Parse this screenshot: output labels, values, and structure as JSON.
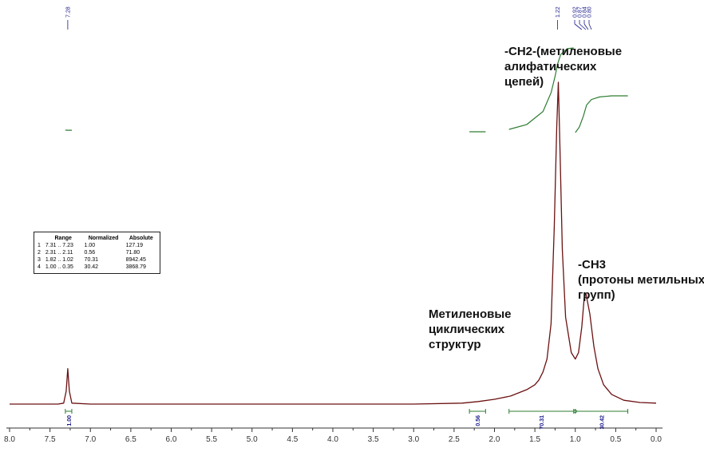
{
  "chart_data": {
    "type": "line",
    "title": "",
    "xlabel": "",
    "ylabel": "",
    "x_reversed": true,
    "xlim": [
      8.0,
      0.0
    ],
    "x_ticks": [
      "8.0",
      "7.5",
      "7.0",
      "6.5",
      "6.0",
      "5.5",
      "5.0",
      "4.5",
      "4.0",
      "3.5",
      "3.0",
      "2.5",
      "2.0",
      "1.5",
      "1.0",
      "0.5",
      "0.0"
    ],
    "series": [
      {
        "points": [
          [
            8.0,
            0.0
          ],
          [
            7.4,
            0.0
          ],
          [
            7.33,
            0.003
          ],
          [
            7.3,
            0.04
          ],
          [
            7.28,
            0.11
          ],
          [
            7.26,
            0.04
          ],
          [
            7.23,
            0.003
          ],
          [
            7.0,
            0.0
          ],
          [
            3.0,
            0.0
          ],
          [
            2.4,
            0.003
          ],
          [
            2.2,
            0.008
          ],
          [
            2.0,
            0.015
          ],
          [
            1.8,
            0.025
          ],
          [
            1.6,
            0.045
          ],
          [
            1.5,
            0.06
          ],
          [
            1.45,
            0.075
          ],
          [
            1.4,
            0.1
          ],
          [
            1.35,
            0.14
          ],
          [
            1.3,
            0.25
          ],
          [
            1.26,
            0.55
          ],
          [
            1.23,
            0.86
          ],
          [
            1.21,
            1.0
          ],
          [
            1.19,
            0.8
          ],
          [
            1.16,
            0.48
          ],
          [
            1.12,
            0.27
          ],
          [
            1.05,
            0.16
          ],
          [
            1.0,
            0.14
          ],
          [
            0.96,
            0.16
          ],
          [
            0.92,
            0.24
          ],
          [
            0.89,
            0.33
          ],
          [
            0.87,
            0.345
          ],
          [
            0.85,
            0.32
          ],
          [
            0.82,
            0.28
          ],
          [
            0.8,
            0.24
          ],
          [
            0.77,
            0.18
          ],
          [
            0.72,
            0.11
          ],
          [
            0.65,
            0.06
          ],
          [
            0.55,
            0.03
          ],
          [
            0.4,
            0.012
          ],
          [
            0.2,
            0.005
          ],
          [
            0.0,
            0.003
          ]
        ]
      }
    ],
    "peak_labels": [
      {
        "x": 7.28,
        "text": "7.28"
      },
      {
        "x": 1.22,
        "text": "1.22"
      },
      {
        "x": 0.92,
        "text": "0.92"
      },
      {
        "x": 0.87,
        "text": "0.87"
      },
      {
        "x": 0.84,
        "text": "0.84"
      },
      {
        "x": 0.8,
        "text": "0.80"
      }
    ],
    "integrals": [
      {
        "from": 7.31,
        "to": 7.23,
        "value": "1.00"
      },
      {
        "from": 2.31,
        "to": 2.11,
        "value": "0.56"
      },
      {
        "from": 1.82,
        "to": 1.02,
        "value": "70.31"
      },
      {
        "from": 1.0,
        "to": 0.35,
        "value": "30.42"
      }
    ],
    "integral_curves": [
      [
        [
          7.31,
          0.0
        ],
        [
          7.27,
          0.02
        ],
        [
          7.23,
          0.025
        ]
      ],
      [
        [
          2.31,
          0.0
        ],
        [
          2.21,
          0.005
        ],
        [
          2.11,
          0.008
        ]
      ],
      [
        [
          1.82,
          0.0
        ],
        [
          1.6,
          0.06
        ],
        [
          1.4,
          0.22
        ],
        [
          1.3,
          0.45
        ],
        [
          1.25,
          0.65
        ],
        [
          1.22,
          0.8
        ],
        [
          1.18,
          0.92
        ],
        [
          1.1,
          0.99
        ],
        [
          1.02,
          1.0
        ]
      ],
      [
        [
          1.0,
          0.0
        ],
        [
          0.95,
          0.15
        ],
        [
          0.9,
          0.45
        ],
        [
          0.86,
          0.75
        ],
        [
          0.8,
          0.9
        ],
        [
          0.7,
          0.97
        ],
        [
          0.55,
          1.0
        ],
        [
          0.35,
          1.0
        ]
      ]
    ],
    "colors": {
      "spectrum": "#6b1111",
      "integral": "#2e7d32",
      "peak_label": "#1a1a8c",
      "axis": "#333333"
    },
    "annotations": [
      {
        "text": "-CH2-(метиленовые\nалифатических\nцепей)"
      },
      {
        "text": "-CH3\n(протоны метильных\nгрупп)"
      },
      {
        "text": "Метиленовые\nциклических\nструктур"
      }
    ],
    "integral_table": {
      "headers": [
        "",
        "Range",
        "Normalized",
        "Absolute"
      ],
      "rows": [
        [
          "1",
          "7.31 .. 7.23",
          "1.00",
          "127.19"
        ],
        [
          "2",
          "2.31 .. 2.11",
          "0.56",
          "71.80"
        ],
        [
          "3",
          "1.82 .. 1.02",
          "70.31",
          "8942.45"
        ],
        [
          "4",
          "1.00 .. 0.35",
          "30.42",
          "3868.79"
        ]
      ]
    }
  }
}
